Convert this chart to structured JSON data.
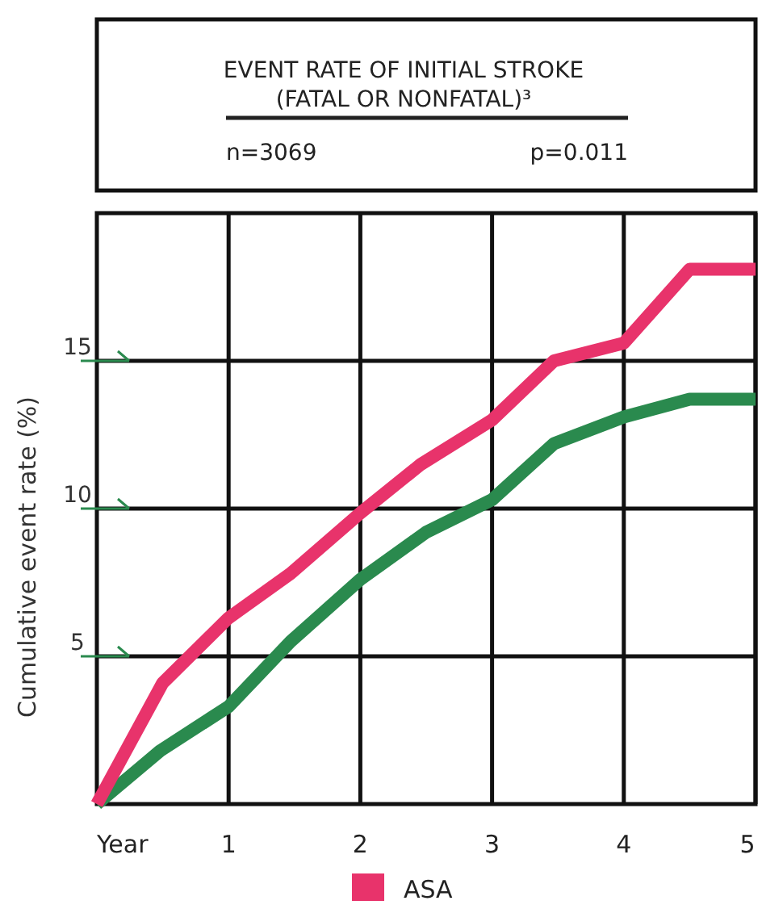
{
  "chart_data": {
    "type": "line",
    "title": "EVENT RATE OF INITIAL STROKE",
    "subtitle": "(FATAL OR NONFATAL)³",
    "annotations": [
      "n=3069",
      "p=0.011"
    ],
    "xlabel": "Year",
    "ylabel": "Cumulative event rate (%)",
    "xlim": [
      0,
      5
    ],
    "xticks": [
      1,
      2,
      3,
      4,
      5
    ],
    "ylim": [
      0,
      20
    ],
    "yticks": [
      5,
      10,
      15
    ],
    "grid": true,
    "legend": "bottom",
    "series": [
      {
        "color": "#2a8a4e",
        "x": [
          0,
          0.48,
          1,
          1.47,
          2,
          2.5,
          3,
          3.47,
          4,
          4.5,
          5
        ],
        "values": [
          0,
          1.8,
          3.3,
          5.5,
          7.6,
          9.2,
          10.3,
          12.2,
          13.1,
          13.7,
          13.7
        ]
      },
      {
        "name": "ASA",
        "color": "#e8336b",
        "x": [
          0,
          0.5,
          1,
          1.47,
          2,
          2.46,
          3,
          3.47,
          4,
          4.5,
          5
        ],
        "values": [
          0,
          4.1,
          6.3,
          7.8,
          9.85,
          11.5,
          13.0,
          15.0,
          15.6,
          18.1,
          18.1
        ]
      }
    ]
  }
}
